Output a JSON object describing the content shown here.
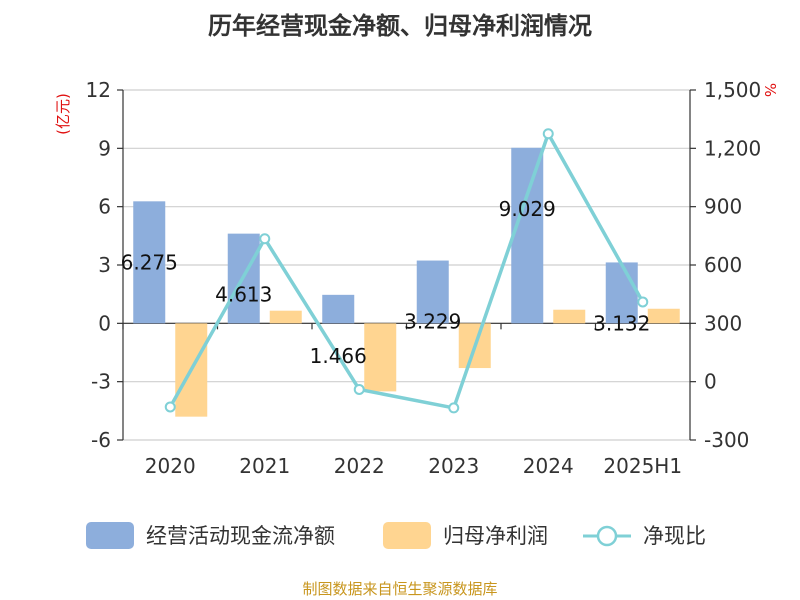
{
  "chart_data": {
    "type": "bar",
    "title": "历年经营现金净额、归母净利润情况",
    "categories": [
      "2020",
      "2021",
      "2022",
      "2023",
      "2024",
      "2025H1"
    ],
    "left_unit": "(亿元)",
    "right_unit": "%",
    "y_left_ticks": [
      "12",
      "9",
      "6",
      "3",
      "0",
      "-3",
      "-6"
    ],
    "y_right_ticks": [
      "1,500",
      "1,200",
      "900",
      "600",
      "300",
      "0",
      "-300"
    ],
    "ylim_left": [
      -6,
      12
    ],
    "ylim_right": [
      -300,
      1500
    ],
    "series": [
      {
        "name": "经营活动现金流净额",
        "type": "bar",
        "axis": "left",
        "values": [
          6.275,
          4.613,
          1.466,
          3.229,
          9.029,
          3.132
        ],
        "labels": [
          "6.275",
          "4.613",
          "1.466",
          "3.229",
          "9.029",
          "3.132"
        ]
      },
      {
        "name": "归母净利润",
        "type": "bar",
        "axis": "left",
        "values": [
          -4.8,
          0.65,
          -3.5,
          -2.3,
          0.7,
          0.75
        ]
      },
      {
        "name": "净现比",
        "type": "line",
        "axis": "right",
        "values": [
          -130,
          735,
          -40,
          -135,
          1275,
          410
        ]
      }
    ],
    "colors": {
      "cash_flow": "#8daedc",
      "net_profit": "#ffd591",
      "ratio": "#7fd0d6"
    },
    "grid": true,
    "legend_position": "bottom"
  },
  "source": "制图数据来自恒生聚源数据库"
}
